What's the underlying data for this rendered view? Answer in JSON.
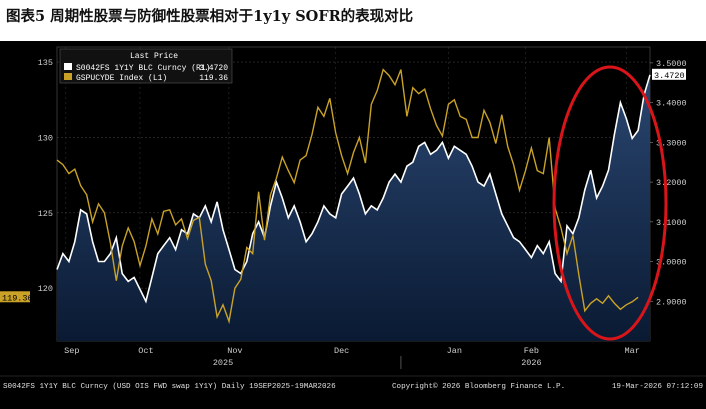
{
  "page": {
    "title": "图表5 周期性股票与防御性股票相对于1y1y SOFR的表现对比"
  },
  "colors": {
    "background": "#000000",
    "area_fill_top": "#2a4670",
    "area_fill_bottom": "#0a1a33",
    "white_line": "#ffffff",
    "gold_line": "#c9a227",
    "highlight_circle": "#d9151a",
    "grid": "#3a3a3a"
  },
  "legend": {
    "header": "Last Price",
    "items": [
      {
        "label": "S0042FS 1Y1Y BLC Curncy  (R1)",
        "value": "3.4720",
        "color": "#ffffff"
      },
      {
        "label": "GSPUCYDE Index  (L1)",
        "value": "119.36",
        "color": "#c9a227"
      }
    ]
  },
  "footer": {
    "left": "S0042FS 1Y1Y BLC Curncy (USD OIS FWD swap 1Y1Y) Daily 19SEP2025-19MAR2026",
    "center": "Copyright© 2026 Bloomberg Finance L.P.",
    "right": "19-Mar-2026 07:12:09"
  },
  "chart_data": {
    "type": "line",
    "title": "图表5 周期性股票与防御性股票相对于1y1y SOFR的表现对比",
    "x_range": [
      0,
      100
    ],
    "x_month_labels": [
      "Sep",
      "Oct",
      "Nov",
      "Dec",
      "Jan",
      "Feb",
      "Mar"
    ],
    "x_month_positions": [
      2.5,
      15,
      30,
      48,
      67,
      80,
      97
    ],
    "x_year_labels": [
      "2025",
      "2026"
    ],
    "x_year_positions": [
      28,
      80
    ],
    "x_year_divider": 58,
    "left_axis": {
      "ylim": [
        116.5,
        136
      ],
      "ticks": [
        120,
        125,
        130,
        135
      ]
    },
    "right_axis": {
      "ylim": [
        2.8,
        3.54
      ],
      "ticks": [
        2.9,
        3.0,
        3.1,
        3.2,
        3.3,
        3.4,
        3.5
      ],
      "tick_labels": [
        "2.9000",
        "3.0000",
        "3.1000",
        "3.2000",
        "3.3000",
        "3.4000",
        "3.5000"
      ]
    },
    "last_value_labels": {
      "left": "119.36",
      "right": "3.4720"
    },
    "series": [
      {
        "name": "S0042FS 1Y1Y BLC Curncy (R1)",
        "axis": "right",
        "style": "area",
        "x": [
          0,
          1,
          2,
          3,
          4,
          5,
          6,
          7,
          8,
          9,
          10,
          11,
          12,
          13,
          14,
          15,
          16,
          17,
          18,
          19,
          20,
          21,
          22,
          23,
          24,
          25,
          26,
          27,
          28,
          29,
          30,
          31,
          32,
          33,
          34,
          35,
          36,
          37,
          38,
          39,
          40,
          41,
          42,
          43,
          44,
          45,
          46,
          47,
          48,
          49,
          50,
          51,
          52,
          53,
          54,
          55,
          56,
          57,
          58,
          59,
          60,
          61,
          62,
          63,
          64,
          65,
          66,
          67,
          68,
          69,
          70,
          71,
          72,
          73,
          74,
          75,
          76,
          77,
          78,
          79,
          80,
          81,
          82,
          83,
          84,
          85,
          86,
          87,
          88,
          89,
          90,
          91,
          92,
          93,
          94,
          95,
          96,
          97,
          98,
          99,
          100
        ],
        "values": [
          2.98,
          3.02,
          3.0,
          3.05,
          3.13,
          3.12,
          3.05,
          3.0,
          3.0,
          3.02,
          3.06,
          2.97,
          2.95,
          2.96,
          2.93,
          2.9,
          2.96,
          3.02,
          3.04,
          3.06,
          3.03,
          3.08,
          3.07,
          3.12,
          3.11,
          3.14,
          3.1,
          3.15,
          3.08,
          3.03,
          2.98,
          2.97,
          3.0,
          3.07,
          3.1,
          3.06,
          3.14,
          3.2,
          3.16,
          3.11,
          3.14,
          3.1,
          3.05,
          3.07,
          3.1,
          3.14,
          3.12,
          3.11,
          3.17,
          3.19,
          3.21,
          3.17,
          3.12,
          3.14,
          3.13,
          3.16,
          3.2,
          3.22,
          3.2,
          3.24,
          3.25,
          3.29,
          3.3,
          3.27,
          3.28,
          3.3,
          3.26,
          3.29,
          3.28,
          3.27,
          3.24,
          3.2,
          3.19,
          3.22,
          3.17,
          3.12,
          3.09,
          3.06,
          3.05,
          3.03,
          3.01,
          3.04,
          3.02,
          3.05,
          2.97,
          2.95,
          3.09,
          3.07,
          3.11,
          3.18,
          3.23,
          3.16,
          3.19,
          3.23,
          3.32,
          3.4,
          3.36,
          3.31,
          3.33,
          3.42,
          3.47
        ]
      },
      {
        "name": "GSPUCYDE Index (L1)",
        "axis": "left",
        "style": "line",
        "x": [
          0,
          1,
          2,
          3,
          4,
          5,
          6,
          7,
          8,
          9,
          10,
          11,
          12,
          13,
          14,
          15,
          16,
          17,
          18,
          19,
          20,
          21,
          22,
          23,
          24,
          25,
          26,
          27,
          28,
          29,
          30,
          31,
          32,
          33,
          34,
          35,
          36,
          37,
          38,
          39,
          40,
          41,
          42,
          43,
          44,
          45,
          46,
          47,
          48,
          49,
          50,
          51,
          52,
          53,
          54,
          55,
          56,
          57,
          58,
          59,
          60,
          61,
          62,
          63,
          64,
          65,
          66,
          67,
          68,
          69,
          70,
          71,
          72,
          73,
          74,
          75,
          76,
          77,
          78,
          79,
          80,
          81,
          82,
          83,
          84,
          85,
          86,
          87,
          88,
          89,
          90,
          91,
          92,
          93,
          94,
          95,
          96,
          97,
          98
        ],
        "values": [
          128.5,
          128.2,
          127.6,
          127.9,
          126.8,
          126.2,
          124.4,
          125.6,
          125.0,
          123.0,
          120.5,
          122.8,
          124.0,
          123.1,
          121.5,
          122.8,
          124.6,
          123.6,
          125.1,
          125.2,
          124.2,
          124.6,
          123.3,
          124.5,
          124.7,
          121.6,
          120.5,
          118.1,
          118.9,
          117.8,
          120.0,
          120.6,
          122.7,
          122.3,
          126.4,
          123.2,
          126.2,
          127.3,
          128.7,
          127.8,
          127.0,
          128.5,
          128.8,
          130.2,
          132.0,
          131.4,
          132.6,
          130.3,
          128.8,
          127.6,
          129.0,
          130.0,
          128.3,
          132.2,
          133.1,
          134.5,
          134.1,
          133.5,
          134.5,
          131.4,
          133.3,
          132.9,
          133.2,
          131.9,
          130.8,
          130.1,
          132.2,
          132.5,
          131.4,
          131.2,
          130.0,
          130.0,
          131.8,
          131.0,
          129.6,
          131.5,
          129.4,
          128.2,
          126.5,
          127.8,
          129.3,
          127.8,
          127.6,
          130.0,
          125.3,
          124.0,
          122.3,
          123.5,
          120.9,
          118.5,
          119.0,
          119.3,
          119.0,
          119.5,
          119.0,
          118.6,
          118.9,
          119.1,
          119.4
        ]
      }
    ],
    "annotation": "red ellipse highlighting the most recent divergence (Feb-Mar 2026)"
  }
}
